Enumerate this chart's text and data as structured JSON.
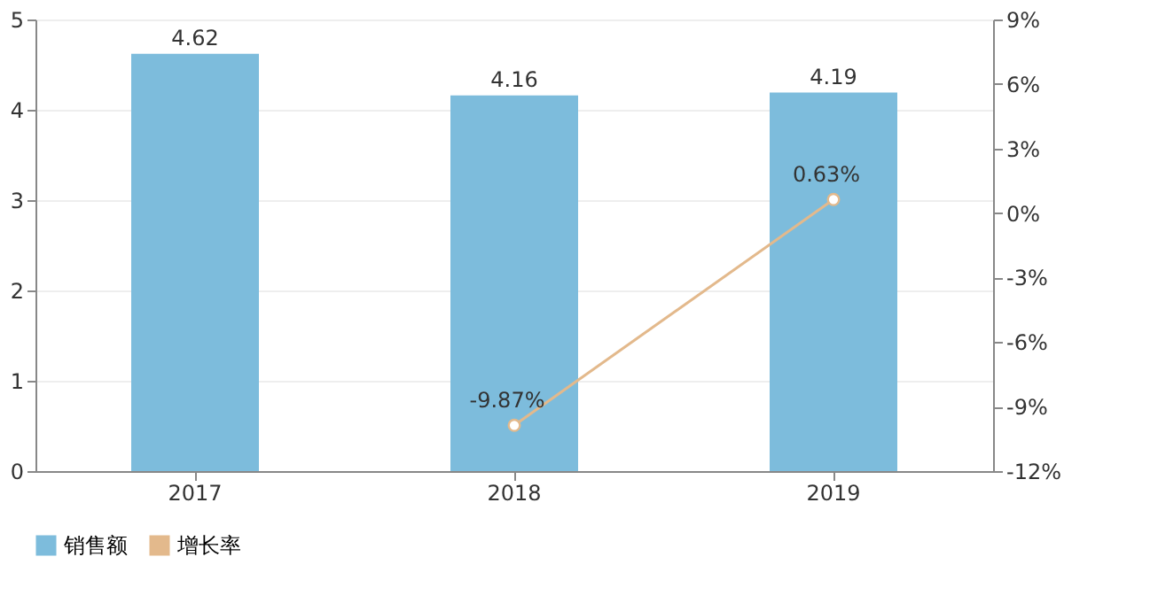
{
  "chart_data": {
    "type": "bar",
    "categories": [
      "2017",
      "2018",
      "2019"
    ],
    "series": [
      {
        "name": "销售额",
        "color": "#7dbcdc",
        "values": [
          4.62,
          4.16,
          4.19
        ],
        "data_labels": true
      },
      {
        "name": "增长率",
        "type": "line",
        "axis": "y2",
        "color": "#e3b98c",
        "marker": "circle",
        "values": [
          null,
          -9.87,
          0.63
        ],
        "value_labels": [
          null,
          "-9.87%",
          "0.63%"
        ]
      }
    ],
    "ylim": [
      0,
      5
    ],
    "yticks": [
      0,
      1,
      2,
      3,
      4,
      5
    ],
    "y2lim": [
      -12,
      9
    ],
    "y2ticks": [
      {
        "value": -12,
        "label": "-12%"
      },
      {
        "value": -9,
        "label": "-9%"
      },
      {
        "value": -6,
        "label": "-6%"
      },
      {
        "value": -3,
        "label": "-3%"
      },
      {
        "value": 0,
        "label": "0%"
      },
      {
        "value": 3,
        "label": "3%"
      },
      {
        "value": 6,
        "label": "6%"
      },
      {
        "value": 9,
        "label": "9%"
      }
    ],
    "grid": "y",
    "legend": "bottom"
  }
}
